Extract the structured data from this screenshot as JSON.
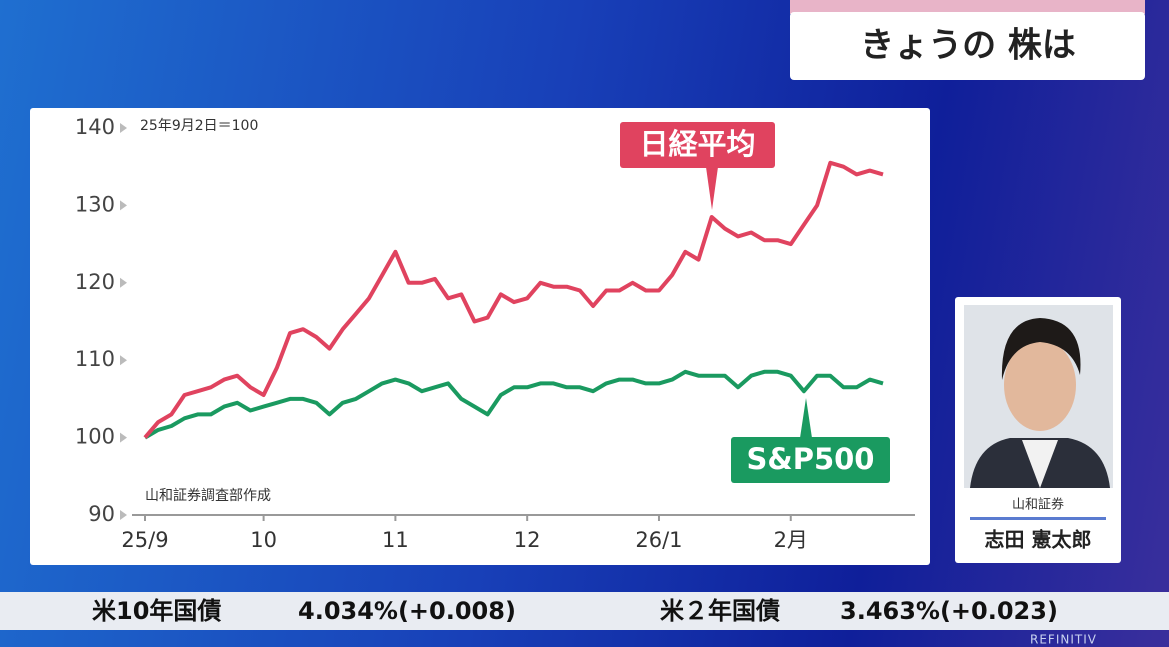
{
  "header": {
    "title": "きょうの 株は"
  },
  "chart_data": {
    "type": "line",
    "note": "25年9月2日＝100",
    "source": "山和証券調査部作成",
    "xlim": [
      0,
      56
    ],
    "xticks": [
      {
        "value": 0,
        "label": "25/9"
      },
      {
        "value": 9,
        "label": "10"
      },
      {
        "value": 19,
        "label": "11"
      },
      {
        "value": 29,
        "label": "12"
      },
      {
        "value": 39,
        "label": "26/1"
      },
      {
        "value": 49,
        "label": "2月"
      }
    ],
    "ylim": [
      90,
      140
    ],
    "yticks": [
      90,
      100,
      110,
      120,
      130,
      140
    ],
    "series": [
      {
        "name": "日経平均",
        "color": "#e0435f",
        "values": [
          100,
          102,
          103,
          105.5,
          106,
          106.5,
          107.5,
          108,
          106.5,
          105.5,
          109,
          113.5,
          114,
          113,
          111.5,
          114,
          116,
          118,
          121,
          124,
          120,
          120,
          120.5,
          118,
          118.5,
          115,
          115.5,
          118.5,
          117.5,
          118,
          120,
          119.5,
          119.5,
          119,
          117,
          119,
          119,
          120,
          119,
          119,
          121,
          124,
          123,
          128.5,
          127,
          126,
          126.5,
          125.5,
          125.5,
          125,
          127.5,
          130,
          135.5,
          135,
          134,
          134.5,
          134
        ]
      },
      {
        "name": "S&P500",
        "color": "#1a9a60",
        "values": [
          100,
          101,
          101.5,
          102.5,
          103,
          103,
          104,
          104.5,
          103.5,
          104,
          104.5,
          105,
          105,
          104.5,
          103,
          104.5,
          105,
          106,
          107,
          107.5,
          107,
          106,
          106.5,
          107,
          105,
          104,
          103,
          105.5,
          106.5,
          106.5,
          107,
          107,
          106.5,
          106.5,
          106,
          107,
          107.5,
          107.5,
          107,
          107,
          107.5,
          108.5,
          108,
          108,
          108,
          106.5,
          108,
          108.5,
          108.5,
          108,
          106,
          108,
          108,
          106.5,
          106.5,
          107.5,
          107
        ]
      }
    ]
  },
  "presenter": {
    "company": "山和証券",
    "name": "志田 憲太郎"
  },
  "ticker": [
    {
      "name": "米10年国債",
      "value": "4.034%(+0.008)"
    },
    {
      "name": "米２年国債",
      "value": "3.463%(+0.023)"
    }
  ],
  "footer": {
    "brand": "REFINITIV"
  }
}
